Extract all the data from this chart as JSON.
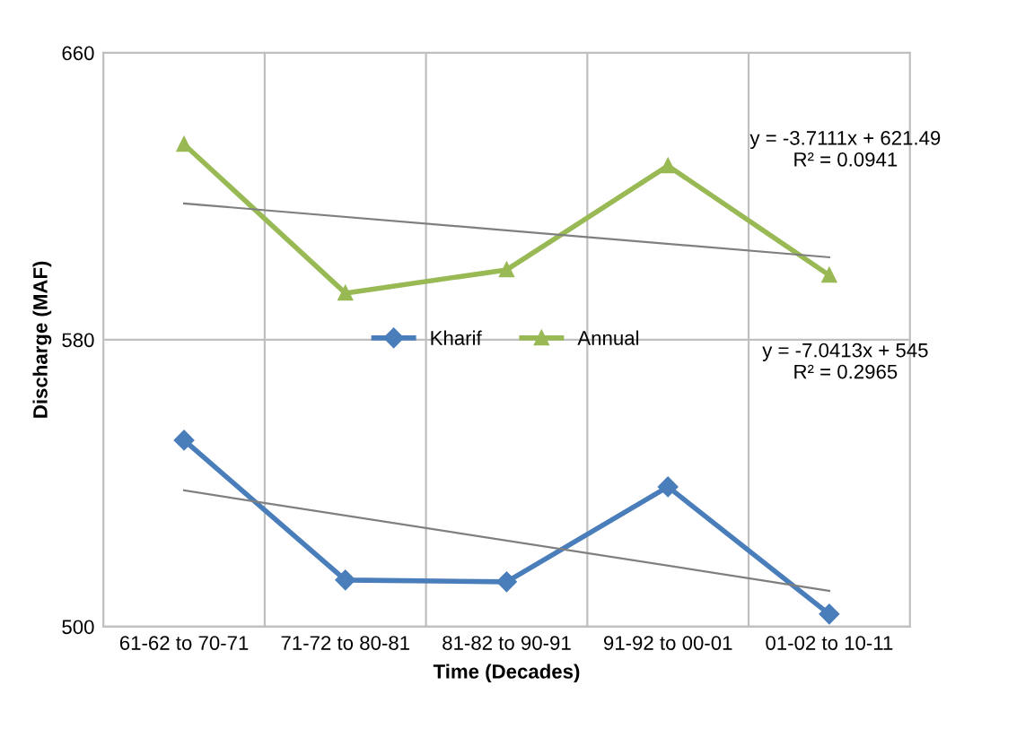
{
  "chart_data": {
    "type": "line",
    "xlabel": "Time (Decades)",
    "ylabel": "Discharge (MAF)",
    "categories": [
      "61-62 to 70-71",
      "71-72 to 80-81",
      "81-82 to 90-91",
      "91-92 to 00-01",
      "01-02 to 10-11"
    ],
    "series": [
      {
        "name": "Kharif",
        "color": "#4a7ebb",
        "values": [
          552,
          513,
          512.5,
          539,
          503.5
        ],
        "marker": "diamond"
      },
      {
        "name": "Annual",
        "color": "#98b954",
        "values": [
          634.5,
          593,
          599.5,
          628.5,
          598
        ],
        "marker": "triangle"
      },
      {
        "type": "line",
        "color": "#7f7f7f",
        "x": [
          "61-62 to 70-71",
          "01-02 to 10-11"
        ],
        "values": [
          538,
          510
        ],
        "marker": "none"
      },
      {
        "type": "line",
        "color": "#7f7f7f",
        "x": [
          "61-62 to 70-71",
          "01-02 to 10-11"
        ],
        "values": [
          618,
          603
        ],
        "marker": "none"
      }
    ],
    "ylim": [
      500,
      660
    ],
    "yticks": [
      500,
      580,
      660
    ],
    "grid": true,
    "legend": "center",
    "line_style": "solid",
    "annotations": [
      "y = -7.0413x + 545\nR² = 0.2965",
      "y = -3.7111x + 621.49\nR² = 0.0941"
    ]
  }
}
